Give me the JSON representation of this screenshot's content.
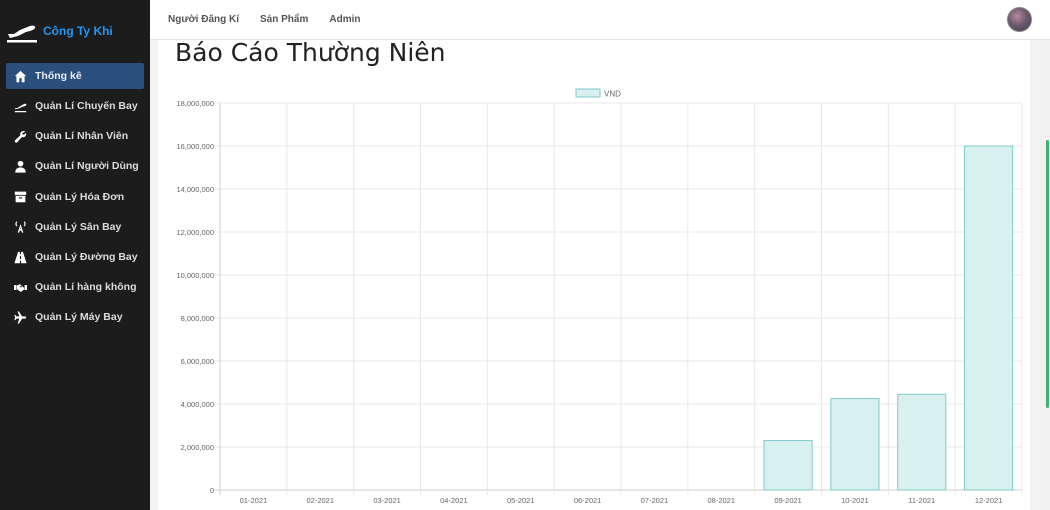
{
  "brand": {
    "name": "Công Ty Khi",
    "logo_icon": "airplane-logo-icon"
  },
  "sidebar": {
    "items": [
      {
        "label": "Thống kê",
        "icon": "home-icon",
        "active": true
      },
      {
        "label": "Quản Lí Chuyến Bay",
        "icon": "plane-departure-icon"
      },
      {
        "label": "Quản Lí Nhân Viên",
        "icon": "wrench-icon"
      },
      {
        "label": "Quản Lí Người Dùng",
        "icon": "user-icon"
      },
      {
        "label": "Quản Lý Hóa Đơn",
        "icon": "archive-icon"
      },
      {
        "label": "Quản Lý Sân Bay",
        "icon": "broadcast-tower-icon"
      },
      {
        "label": "Quản Lý Đường Bay",
        "icon": "road-icon"
      },
      {
        "label": "Quản Lí hàng không",
        "icon": "handshake-icon"
      },
      {
        "label": "Quản Lý Máy Bay",
        "icon": "plane-icon"
      }
    ]
  },
  "topbar": {
    "nav": [
      "Người Đăng Kí",
      "Sản Phẩm",
      "Admin"
    ]
  },
  "main": {
    "title": "Báo Cáo Thường Niên"
  },
  "colors": {
    "accent": "#2196f3",
    "sidebar_bg": "#1c1c1c",
    "active_bg": "#2b4f7d",
    "bar_fill": "#d9f0f1",
    "bar_stroke": "#7fcacc"
  },
  "chart_data": {
    "type": "bar",
    "categories": [
      "01-2021",
      "02-2021",
      "03-2021",
      "04-2021",
      "05-2021",
      "06-2021",
      "07-2021",
      "08-2021",
      "09-2021",
      "10-2021",
      "11-2021",
      "12-2021"
    ],
    "series": [
      {
        "name": "VND",
        "values": [
          0,
          0,
          0,
          0,
          0,
          0,
          0,
          0,
          2300000,
          4250000,
          4450000,
          16000000
        ]
      }
    ],
    "ylim": [
      0,
      18000000
    ],
    "yticks": [
      "0",
      "2,000,000",
      "4,000,000",
      "6,000,000",
      "8,000,000",
      "10,000,000",
      "12,000,000",
      "14,000,000",
      "16,000,000",
      "18,000,000"
    ],
    "grid": true,
    "legend": "top"
  }
}
